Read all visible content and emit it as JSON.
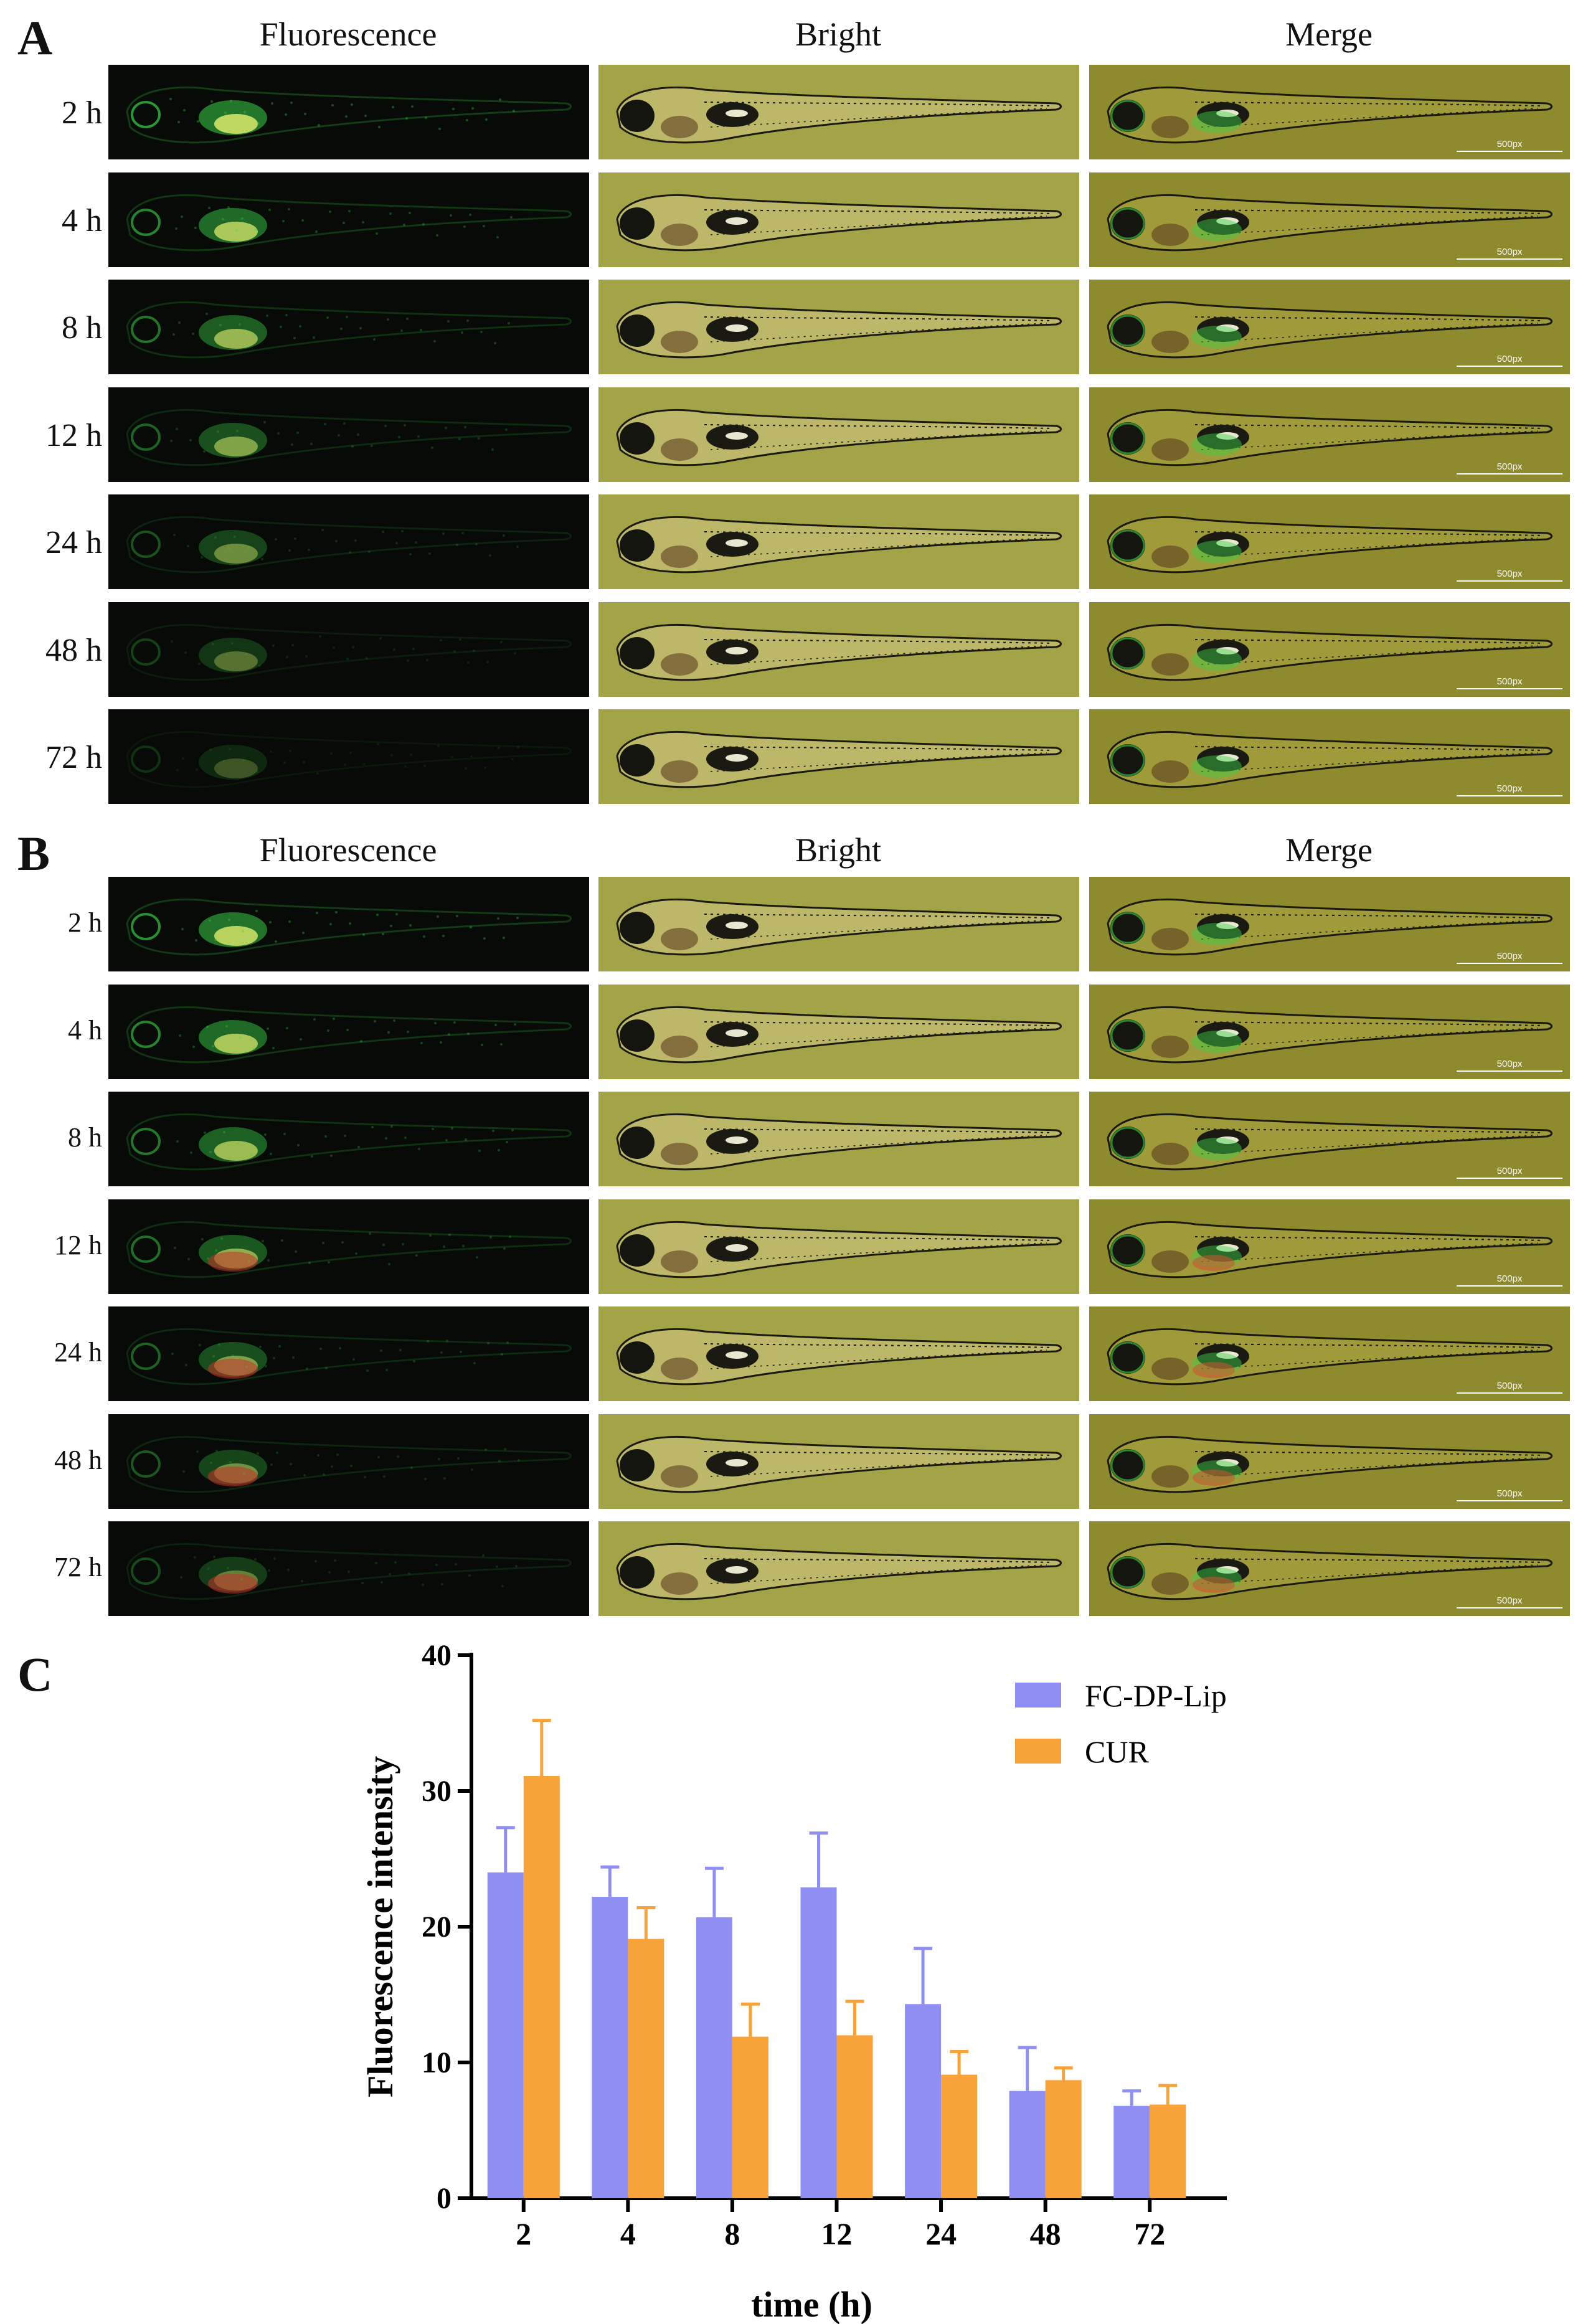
{
  "panels": {
    "A": {
      "label": "A",
      "columns": [
        "Fluorescence",
        "Bright",
        "Merge"
      ],
      "rows": [
        "2 h",
        "4 h",
        "8 h",
        "12 h",
        "24 h",
        "48 h",
        "72 h"
      ]
    },
    "B": {
      "label": "B",
      "columns": [
        "Fluorescence",
        "Bright",
        "Merge"
      ],
      "rows": [
        "2 h",
        "4 h",
        "8 h",
        "12 h",
        "24 h",
        "48 h",
        "72 h"
      ]
    },
    "C": {
      "label": "C"
    }
  },
  "scale_bar_label": "500px",
  "colors": {
    "fluor_bg": "#070a06",
    "fluor_green": "#3bd24a",
    "bright_bg": "#a3a348",
    "merge_bg": "#8e8a2e",
    "series1": "#8f8ff3",
    "series2": "#f8a23a"
  },
  "chart_data": {
    "type": "bar",
    "title": "",
    "xlabel": "time (h)",
    "ylabel": "Fluorescence intensity",
    "categories": [
      "2",
      "4",
      "8",
      "12",
      "24",
      "48",
      "72"
    ],
    "ylim": [
      0,
      40
    ],
    "yticks": [
      "0",
      "10",
      "20",
      "30",
      "40"
    ],
    "series": [
      {
        "name": "FC-DP-Lip",
        "values": [
          24.0,
          22.2,
          20.7,
          22.9,
          14.3,
          7.9,
          6.8
        ],
        "errors": [
          3.3,
          2.2,
          3.6,
          4.0,
          4.1,
          3.2,
          1.1
        ]
      },
      {
        "name": "CUR",
        "values": [
          31.1,
          19.1,
          11.9,
          12.0,
          9.1,
          8.7,
          6.9
        ],
        "errors": [
          4.1,
          2.3,
          2.4,
          2.5,
          1.7,
          0.9,
          1.4
        ]
      }
    ],
    "legend_position": "top-right"
  }
}
